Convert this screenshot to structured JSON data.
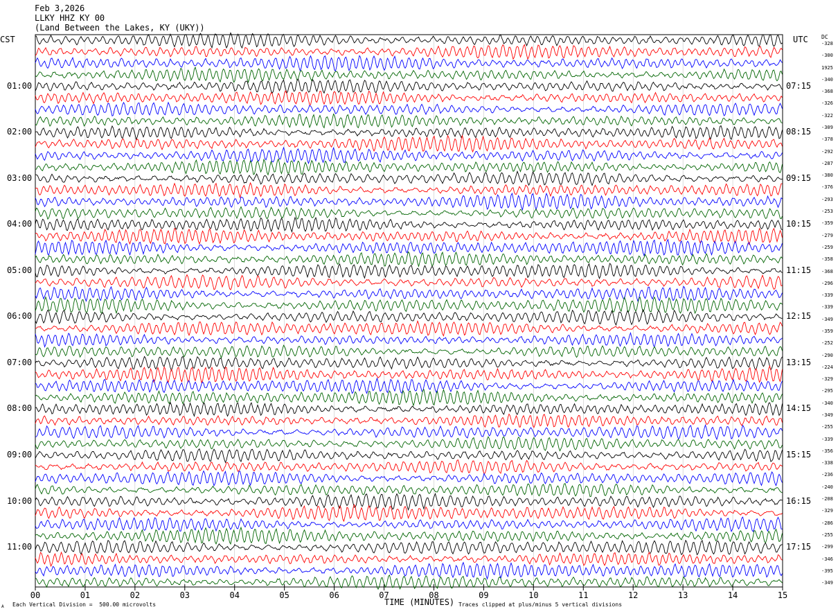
{
  "header": {
    "date": "Feb 3,2026",
    "station": "LLKY HHZ KY 00",
    "location": "(Land Between the Lakes, KY (UKY))"
  },
  "left_tz": "CST",
  "right_tz": "UTC",
  "dc_label": "DC",
  "left_hours": [
    "01:00",
    "02:00",
    "03:00",
    "04:00",
    "05:00",
    "06:00",
    "07:00",
    "08:00",
    "09:00",
    "10:00",
    "11:00"
  ],
  "right_hours": [
    "07:15",
    "08:15",
    "09:15",
    "10:15",
    "11:15",
    "12:15",
    "13:15",
    "14:15",
    "15:15",
    "16:15",
    "17:15"
  ],
  "dc_offsets": [
    "-328",
    "-300",
    "1925",
    "-340",
    "-368",
    "-326",
    "-322",
    "-309",
    "-378",
    "-292",
    "-287",
    "-380",
    "-376",
    "-293",
    "-253",
    "-359",
    "-279",
    "-259",
    "-358",
    "-368",
    "-296",
    "-339",
    "-339",
    "-349",
    "-359",
    "-252",
    "-290",
    "-224",
    "-329",
    "-295",
    "-340",
    "-349",
    "-255",
    "-339",
    "-356",
    "-338",
    "-236",
    "-240",
    "-208",
    "-329",
    "-286",
    "-255",
    "-299",
    "-346",
    "-395",
    "-349"
  ],
  "x_ticks": [
    "00",
    "01",
    "02",
    "03",
    "04",
    "05",
    "06",
    "07",
    "08",
    "09",
    "10",
    "11",
    "12",
    "13",
    "14",
    "15"
  ],
  "x_axis_label": "TIME (MINUTES)",
  "footer_left": "Each Vertical Division =  500.00 microvolts",
  "footer_right": "Traces clipped at plus/minus 5 vertical divisions",
  "footer_mark": "A",
  "chart_data": {
    "type": "line",
    "title": "LLKY HHZ KY 00",
    "xlabel": "TIME (MINUTES)",
    "xlim": [
      0,
      15
    ],
    "trace_count": 48,
    "trace_interval_minutes": 15,
    "trace_colors": [
      "#000000",
      "#ff0000",
      "#0000ff",
      "#006400"
    ],
    "vertical_division_microvolts": 500.0,
    "clip_divisions": 5
  }
}
